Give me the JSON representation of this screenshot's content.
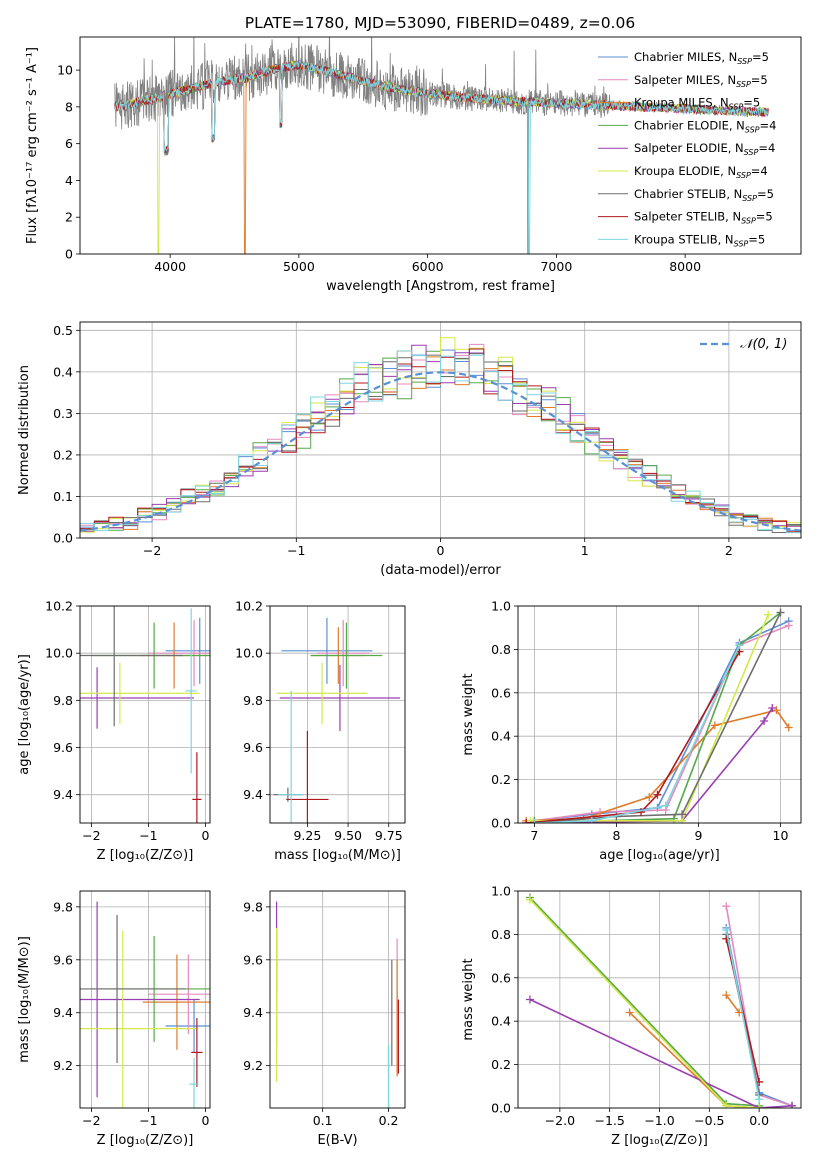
{
  "figure": {
    "title": "PLATE=1780, MJD=53090, FIBERID=0489, z=0.06"
  },
  "models": [
    {
      "name": "Chabrier MILES",
      "nssp": "5",
      "color": "#5b8fd6"
    },
    {
      "name": "Salpeter MILES",
      "nssp": "5",
      "color": "#e58ac0"
    },
    {
      "name": "Kroupa MILES",
      "nssp": "5",
      "color": "#e07b2a"
    },
    {
      "name": "Chabrier ELODIE",
      "nssp": "4",
      "color": "#57a84a"
    },
    {
      "name": "Salpeter ELODIE",
      "nssp": "4",
      "color": "#9a3fb0"
    },
    {
      "name": "Kroupa ELODIE",
      "nssp": "4",
      "color": "#d4e84a"
    },
    {
      "name": "Chabrier STELIB",
      "nssp": "5",
      "color": "#6e6e6e"
    },
    {
      "name": "Salpeter STELIB",
      "nssp": "5",
      "color": "#b0191e"
    },
    {
      "name": "Kroupa STELIB",
      "nssp": "5",
      "color": "#7dd6e0"
    }
  ],
  "chart_data": [
    {
      "type": "line",
      "id": "spectrum",
      "xlabel": "wavelength [Angstrom, rest frame]",
      "ylabel": "Flux [fλ10⁻¹⁷ erg cm⁻² s⁻¹ A⁻¹]",
      "xlim": [
        3300,
        8900
      ],
      "ylim": [
        0,
        11.8
      ],
      "xticks": [
        4000,
        5000,
        6000,
        7000,
        8000
      ],
      "yticks": [
        0,
        2,
        4,
        6,
        8,
        10
      ],
      "legend": "top-right",
      "data_color": "#808080",
      "data_xrange": [
        3570,
        7420
      ],
      "model_xrange": [
        3570,
        8650
      ]
    },
    {
      "type": "line",
      "id": "residuals",
      "xlabel": "(data-model)/error",
      "ylabel": "Normed distribution",
      "xlim": [
        -2.5,
        2.5
      ],
      "ylim": [
        0,
        0.52
      ],
      "xticks": [
        -2,
        -1,
        0,
        1,
        2
      ],
      "yticks": [
        0.0,
        0.1,
        0.2,
        0.3,
        0.4,
        0.5
      ],
      "legend_label": "𝒩(0, 1)",
      "normal_color": "#5b8fd6",
      "bin_width": 0.1
    },
    {
      "type": "scatter",
      "id": "age_vs_Z",
      "xlabel": "Z [log₁₀(Z/Z⊙)]",
      "ylabel": "age  [log₁₀(age/yr)]",
      "xlim": [
        -2.2,
        0.08
      ],
      "ylim": [
        9.28,
        10.2
      ],
      "xticks": [
        -2,
        -1,
        0
      ],
      "yticks": [
        9.4,
        9.6,
        9.8,
        10.0,
        10.2
      ],
      "points": [
        {
          "x": -0.1,
          "y": 10.01,
          "xerr": 0.6,
          "yerr": 0.14,
          "c": 0
        },
        {
          "x": -0.2,
          "y": 10.0,
          "xerr": 0.8,
          "yerr": 0.14,
          "c": 1
        },
        {
          "x": -0.55,
          "y": 9.99,
          "xerr": 0.6,
          "yerr": 0.14,
          "c": 2
        },
        {
          "x": -0.9,
          "y": 9.99,
          "xerr": 1.1,
          "yerr": 0.14,
          "c": 3
        },
        {
          "x": -1.9,
          "y": 9.81,
          "xerr": 1.7,
          "yerr": 0.13,
          "c": 4
        },
        {
          "x": -1.5,
          "y": 9.83,
          "xerr": 1.4,
          "yerr": 0.13,
          "c": 5
        },
        {
          "x": -1.6,
          "y": 9.99,
          "xerr": 1.2,
          "yerr": 0.3,
          "c": 6
        },
        {
          "x": -0.15,
          "y": 9.38,
          "xerr": 0.08,
          "yerr": 0.2,
          "c": 7
        },
        {
          "x": -0.25,
          "y": 9.84,
          "xerr": 0.1,
          "yerr": 0.35,
          "c": 8
        }
      ]
    },
    {
      "type": "scatter",
      "id": "age_vs_mass",
      "xlabel": "mass [log₁₀(M/M⊙)]",
      "ylabel": "",
      "xlim": [
        9.02,
        9.85
      ],
      "ylim": [
        9.28,
        10.2
      ],
      "xticks": [
        9.25,
        9.5,
        9.75
      ],
      "yticks": [
        9.4,
        9.6,
        9.8,
        10.0,
        10.2
      ],
      "points": [
        {
          "x": 9.37,
          "y": 10.01,
          "xerr": 0.28,
          "yerr": 0.14,
          "c": 0
        },
        {
          "x": 9.47,
          "y": 10.0,
          "xerr": 0.16,
          "yerr": 0.14,
          "c": 1
        },
        {
          "x": 9.44,
          "y": 9.99,
          "xerr": 0.17,
          "yerr": 0.12,
          "c": 2
        },
        {
          "x": 9.49,
          "y": 9.99,
          "xerr": 0.22,
          "yerr": 0.14,
          "c": 3
        },
        {
          "x": 9.45,
          "y": 9.81,
          "xerr": 0.37,
          "yerr": 0.14,
          "c": 4
        },
        {
          "x": 9.34,
          "y": 9.83,
          "xerr": 0.28,
          "yerr": 0.13,
          "c": 5
        },
        {
          "x": 9.13,
          "y": 9.4,
          "xerr": 0.09,
          "yerr": 0.03,
          "c": 6
        },
        {
          "x": 9.25,
          "y": 9.38,
          "xerr": 0.13,
          "yerr": 0.29,
          "c": 7
        },
        {
          "x": 9.15,
          "y": 9.4,
          "xerr": 0.08,
          "yerr": 0.44,
          "c": 8
        }
      ]
    },
    {
      "type": "line",
      "id": "massweight_vs_age",
      "xlabel": "age  [log₁₀(age/yr)]",
      "ylabel": "mass weight",
      "xlim": [
        6.8,
        10.25
      ],
      "ylim": [
        0,
        1.0
      ],
      "xticks": [
        7,
        8,
        9,
        10
      ],
      "yticks": [
        0.0,
        0.2,
        0.4,
        0.6,
        0.8,
        1.0
      ],
      "series": [
        {
          "c": 0,
          "x": [
            7.0,
            7.7,
            8.5,
            9.5,
            10.1
          ],
          "y": [
            0.01,
            0.04,
            0.07,
            0.83,
            0.93
          ]
        },
        {
          "c": 1,
          "x": [
            7.0,
            7.8,
            8.6,
            9.5,
            10.1
          ],
          "y": [
            0.01,
            0.05,
            0.06,
            0.82,
            0.91
          ]
        },
        {
          "c": 2,
          "x": [
            6.9,
            7.6,
            8.4,
            9.2,
            9.95,
            10.1
          ],
          "y": [
            0.01,
            0.02,
            0.12,
            0.45,
            0.52,
            0.44
          ]
        },
        {
          "c": 3,
          "x": [
            7.0,
            7.8,
            8.7,
            9.5,
            10.0
          ],
          "y": [
            0.01,
            0.01,
            0.02,
            0.82,
            0.97
          ]
        },
        {
          "c": 4,
          "x": [
            6.9,
            8.8,
            9.8,
            9.9
          ],
          "y": [
            0.0,
            0.01,
            0.47,
            0.53
          ]
        },
        {
          "c": 5,
          "x": [
            6.95,
            8.8,
            9.85
          ],
          "y": [
            0.01,
            0.01,
            0.96
          ]
        },
        {
          "c": 6,
          "x": [
            7.0,
            8.0,
            8.8,
            10.0
          ],
          "y": [
            0.0,
            0.03,
            0.04,
            0.97
          ]
        },
        {
          "c": 7,
          "x": [
            6.9,
            8.3,
            8.5,
            9.5
          ],
          "y": [
            0.0,
            0.05,
            0.13,
            0.79
          ]
        },
        {
          "c": 8,
          "x": [
            7.0,
            7.7,
            8.6,
            9.5
          ],
          "y": [
            0.0,
            0.01,
            0.08,
            0.82
          ]
        }
      ]
    },
    {
      "type": "scatter",
      "id": "mass_vs_Z",
      "xlabel": "Z [log₁₀(Z/Z⊙)]",
      "ylabel": "mass [log₁₀(M/M⊙)]",
      "xlim": [
        -2.2,
        0.08
      ],
      "ylim": [
        9.04,
        9.86
      ],
      "xticks": [
        -2,
        -1,
        0
      ],
      "yticks": [
        9.2,
        9.4,
        9.6,
        9.8
      ],
      "points": [
        {
          "x": -0.2,
          "y": 9.35,
          "xerr": 0.5,
          "yerr": 0.1,
          "c": 0
        },
        {
          "x": -0.3,
          "y": 9.47,
          "xerr": 0.7,
          "yerr": 0.15,
          "c": 1
        },
        {
          "x": -0.5,
          "y": 9.44,
          "xerr": 0.6,
          "yerr": 0.18,
          "c": 2
        },
        {
          "x": -0.9,
          "y": 9.49,
          "xerr": 1.1,
          "yerr": 0.2,
          "c": 3
        },
        {
          "x": -1.9,
          "y": 9.45,
          "xerr": 1.8,
          "yerr": 0.37,
          "c": 4
        },
        {
          "x": -1.45,
          "y": 9.34,
          "xerr": 1.3,
          "yerr": 0.37,
          "c": 5
        },
        {
          "x": -1.55,
          "y": 9.49,
          "xerr": 1.2,
          "yerr": 0.28,
          "c": 6
        },
        {
          "x": -0.15,
          "y": 9.25,
          "xerr": 0.1,
          "yerr": 0.13,
          "c": 7
        },
        {
          "x": -0.2,
          "y": 9.13,
          "xerr": 0.08,
          "yerr": 0.1,
          "c": 8
        }
      ]
    },
    {
      "type": "scatter",
      "id": "mass_vs_EBV",
      "xlabel": "E(B-V)",
      "ylabel": "",
      "xlim": [
        0.02,
        0.225
      ],
      "ylim": [
        9.04,
        9.86
      ],
      "xticks": [
        0.1,
        0.2
      ],
      "yticks": [
        9.2,
        9.4,
        9.6,
        9.8
      ],
      "points": [
        {
          "x": 0.2,
          "y": 9.15,
          "xerr": 0,
          "yerr": 0.12,
          "c": 0
        },
        {
          "x": 0.213,
          "y": 9.42,
          "xerr": 0,
          "yerr": 0.26,
          "c": 1
        },
        {
          "x": 0.213,
          "y": 9.38,
          "xerr": 0,
          "yerr": 0.22,
          "c": 2
        },
        {
          "x": 0.03,
          "y": 9.49,
          "xerr": 0,
          "yerr": 0.22,
          "c": 3
        },
        {
          "x": 0.03,
          "y": 9.65,
          "xerr": 0,
          "yerr": 0.17,
          "c": 4
        },
        {
          "x": 0.03,
          "y": 9.43,
          "xerr": 0,
          "yerr": 0.29,
          "c": 5
        },
        {
          "x": 0.205,
          "y": 9.4,
          "xerr": 0,
          "yerr": 0.2,
          "c": 6
        },
        {
          "x": 0.215,
          "y": 9.31,
          "xerr": 0,
          "yerr": 0.14,
          "c": 7
        },
        {
          "x": 0.2,
          "y": 9.15,
          "xerr": 0,
          "yerr": 0.13,
          "c": 8
        }
      ]
    },
    {
      "type": "line",
      "id": "massweight_vs_Z",
      "xlabel": "Z [log₁₀(Z/Z⊙)]",
      "ylabel": "mass weight",
      "xlim": [
        -2.42,
        0.42
      ],
      "ylim": [
        0,
        1.0
      ],
      "xticks": [
        -2.0,
        -1.5,
        -1.0,
        -0.5,
        0.0
      ],
      "yticks": [
        0.0,
        0.2,
        0.4,
        0.6,
        0.8,
        1.0
      ],
      "series": [
        {
          "c": 0,
          "x": [
            -0.33,
            0.0,
            0.33
          ],
          "y": [
            0.83,
            0.07,
            0.01
          ]
        },
        {
          "c": 1,
          "x": [
            -0.33,
            0.0,
            0.33
          ],
          "y": [
            0.93,
            0.06,
            0.01
          ]
        },
        {
          "c": 2,
          "x": [
            -1.3,
            -0.33,
            0.0
          ],
          "y": [
            0.44,
            0.01,
            0.0
          ]
        },
        {
          "c": 3,
          "x": [
            -2.3,
            -0.33,
            0.0
          ],
          "y": [
            0.97,
            0.02,
            0.01
          ]
        },
        {
          "c": 4,
          "x": [
            -2.3,
            0.0,
            0.33
          ],
          "y": [
            0.5,
            0.0,
            0.01
          ]
        },
        {
          "c": 5,
          "x": [
            -2.3,
            -0.33,
            0.0
          ],
          "y": [
            0.96,
            0.01,
            0.0
          ]
        },
        {
          "c": 6,
          "x": [
            -0.33,
            0.0
          ],
          "y": [
            0.8,
            0.06
          ]
        },
        {
          "c": 7,
          "x": [
            -0.33,
            0.0
          ],
          "y": [
            0.78,
            0.12
          ]
        },
        {
          "c": 8,
          "x": [
            -0.33,
            0.0
          ],
          "y": [
            0.82,
            0.04
          ]
        },
        {
          "c": 2,
          "x": [
            -0.33,
            -0.2
          ],
          "y": [
            0.52,
            0.44
          ]
        }
      ]
    }
  ]
}
